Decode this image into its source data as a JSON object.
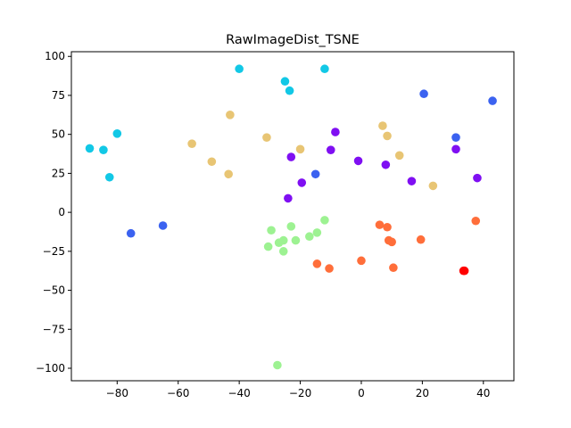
{
  "chart_data": {
    "type": "scatter",
    "title": "RawImageDist_TSNE",
    "xlabel": "",
    "ylabel": "",
    "xlim": [
      -95,
      50
    ],
    "ylim": [
      -108,
      103
    ],
    "xticks": [
      -80,
      -60,
      -40,
      -20,
      0,
      20,
      40
    ],
    "yticks": [
      100,
      75,
      50,
      25,
      0,
      -25,
      -50,
      -75,
      -100
    ],
    "xtick_labels": [
      "−80",
      "−60",
      "−40",
      "−20",
      "0",
      "20",
      "40"
    ],
    "ytick_labels": [
      "100",
      "75",
      "50",
      "25",
      "0",
      "−25",
      "−50",
      "−75",
      "−100"
    ],
    "grid": false,
    "series": [
      {
        "color": "#12c8e6",
        "points": [
          {
            "x": -40,
            "y": 92
          },
          {
            "x": -12,
            "y": 92
          },
          {
            "x": -25,
            "y": 84
          },
          {
            "x": -23.5,
            "y": 78
          },
          {
            "x": -80,
            "y": 50.5
          },
          {
            "x": -89,
            "y": 41
          },
          {
            "x": -84.5,
            "y": 40
          },
          {
            "x": -82.5,
            "y": 22.5
          }
        ]
      },
      {
        "color": "#3b62f0",
        "points": [
          {
            "x": 20.5,
            "y": 76
          },
          {
            "x": 43,
            "y": 71.5
          },
          {
            "x": 31,
            "y": 48
          },
          {
            "x": -15,
            "y": 24.5
          },
          {
            "x": -75.5,
            "y": -13.5
          },
          {
            "x": -65,
            "y": -8.5
          }
        ]
      },
      {
        "color": "#e8c574",
        "points": [
          {
            "x": -43,
            "y": 62.5
          },
          {
            "x": 7,
            "y": 55.5
          },
          {
            "x": 8.5,
            "y": 49
          },
          {
            "x": -31,
            "y": 48
          },
          {
            "x": -55.5,
            "y": 44
          },
          {
            "x": -20,
            "y": 40.5
          },
          {
            "x": 12.5,
            "y": 36.5
          },
          {
            "x": -49,
            "y": 32.5
          },
          {
            "x": -43.5,
            "y": 24.5
          },
          {
            "x": 23.5,
            "y": 17
          }
        ]
      },
      {
        "color": "#7f0ff2",
        "points": [
          {
            "x": -8.5,
            "y": 51.5
          },
          {
            "x": 31,
            "y": 40.5
          },
          {
            "x": -10,
            "y": 40
          },
          {
            "x": -23,
            "y": 35.5
          },
          {
            "x": -1,
            "y": 33
          },
          {
            "x": 8,
            "y": 30.5
          },
          {
            "x": 38,
            "y": 22
          },
          {
            "x": -19.5,
            "y": 19
          },
          {
            "x": 16.5,
            "y": 20
          },
          {
            "x": -24,
            "y": 9
          }
        ]
      },
      {
        "color": "#9df292",
        "points": [
          {
            "x": -12,
            "y": -5
          },
          {
            "x": -23,
            "y": -9
          },
          {
            "x": -29.5,
            "y": -11.5
          },
          {
            "x": -14.5,
            "y": -13
          },
          {
            "x": -17,
            "y": -15.5
          },
          {
            "x": -25.5,
            "y": -18
          },
          {
            "x": -21.5,
            "y": -18
          },
          {
            "x": -27,
            "y": -19.5
          },
          {
            "x": -30.5,
            "y": -22
          },
          {
            "x": -25.5,
            "y": -25
          },
          {
            "x": -27.5,
            "y": -98
          }
        ]
      },
      {
        "color": "#ff6e3a",
        "points": [
          {
            "x": 37.5,
            "y": -5.5
          },
          {
            "x": 6,
            "y": -8
          },
          {
            "x": 8.5,
            "y": -9.5
          },
          {
            "x": 19.5,
            "y": -17.5
          },
          {
            "x": 9,
            "y": -18
          },
          {
            "x": 10,
            "y": -19
          },
          {
            "x": 0,
            "y": -31
          },
          {
            "x": -14.5,
            "y": -33
          },
          {
            "x": -10.5,
            "y": -36
          },
          {
            "x": 10.5,
            "y": -35.5
          }
        ]
      },
      {
        "color": "#ff0000",
        "points": [
          {
            "x": 33.5,
            "y": -37.5
          },
          {
            "x": 33.8,
            "y": -37.5
          }
        ]
      }
    ]
  }
}
